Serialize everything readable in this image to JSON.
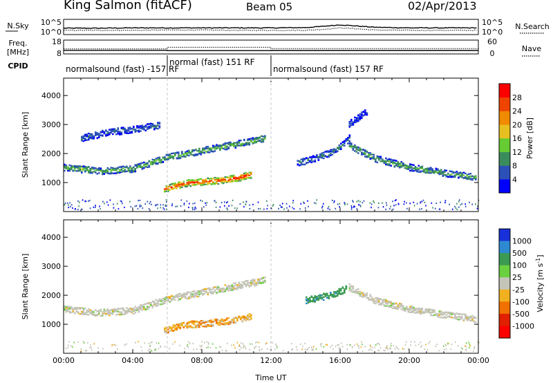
{
  "header": {
    "station": "King Salmon (fitACF)",
    "beam": "Beam 05",
    "date": "02/Apr/2013"
  },
  "chart_data": [
    {
      "type": "line",
      "panel": "noise",
      "left_label": "N.Sky",
      "right_label": "N.Search",
      "left_ticks": [
        "10^5",
        "10^0"
      ],
      "right_ticks": [
        "10^5",
        "10^0"
      ],
      "x_hours": [
        0,
        2,
        4,
        6,
        8,
        10,
        12,
        14,
        15,
        16,
        17,
        18,
        20,
        22,
        24
      ],
      "series": [
        {
          "values_log10": [
            2.1,
            2.1,
            2.2,
            2.2,
            2.2,
            2.2,
            2.2,
            2.3,
            2.7,
            3.2,
            2.8,
            2.4,
            2.2,
            2.2,
            2.2
          ]
        },
        {
          "values_log10": [
            1.4,
            1.4,
            1.4,
            1.5,
            1.5,
            1.4,
            1.4,
            1.4,
            1.7,
            2.2,
            1.9,
            1.5,
            1.4,
            1.4,
            1.4
          ]
        }
      ]
    },
    {
      "type": "line",
      "panel": "frequency",
      "left_label": "Freq.",
      "left_unit": "[MHz]",
      "right_label": "Nave",
      "left_ticks": [
        "18",
        "8"
      ],
      "right_ticks": [
        "60",
        "0"
      ],
      "x_hours": [
        0,
        6,
        6.001,
        12,
        12.001,
        24
      ],
      "series": [
        {
          "values": [
            10.6,
            10.6,
            10.4,
            10.4,
            10.5,
            10.5
          ]
        },
        {
          "values": [
            11.6,
            11.6,
            12.8,
            12.8,
            11.9,
            11.9
          ]
        }
      ]
    },
    {
      "type": "table",
      "panel": "cpid",
      "label": "CPID",
      "segments": [
        {
          "start": 0,
          "end": 6,
          "text": "normalsound (fast) -157 RF"
        },
        {
          "start": 6,
          "end": 12,
          "text": "normal (fast) 151 RF"
        },
        {
          "start": 12,
          "end": 24,
          "text": "normalsound (fast) 157 RF"
        }
      ]
    },
    {
      "type": "heatmap",
      "panel": "power",
      "ylabel": "Slant Range [km]",
      "yticks": [
        1000,
        2000,
        3000,
        4000
      ],
      "ylim": [
        0,
        4600
      ],
      "xlim": [
        0,
        24
      ],
      "colorbar": {
        "label": "Power [dB]",
        "ticks": [
          "4",
          "8",
          "12",
          "16",
          "20",
          "24",
          "28"
        ],
        "colors": [
          "#0000ff",
          "#2b50b8",
          "#3b8c5c",
          "#66cc33",
          "#e6c020",
          "#f08a00",
          "#ee4400",
          "#ff0000"
        ]
      },
      "features": [
        {
          "hours": [
            0,
            2,
            4,
            5,
            6,
            8,
            10,
            11.6
          ],
          "range_km": [
            1550,
            1420,
            1500,
            1700,
            1900,
            2120,
            2350,
            2550
          ],
          "power_db": 11
        },
        {
          "hours": [
            5.8,
            7,
            8,
            9,
            10,
            10.8
          ],
          "range_km": [
            800,
            1000,
            1050,
            1100,
            1180,
            1300
          ],
          "power_db": 23
        },
        {
          "hours": [
            13.5,
            14.5,
            15.4,
            16.2,
            16.5
          ],
          "range_km": [
            1700,
            1850,
            2050,
            2350,
            2550
          ],
          "power_db": 7
        },
        {
          "hours": [
            16.5,
            18,
            20,
            22,
            23.9
          ],
          "range_km": [
            2300,
            1850,
            1550,
            1350,
            1200
          ],
          "power_db": 10
        },
        {
          "hours": [
            1,
            2.5,
            4,
            5.5
          ],
          "range_km": [
            2550,
            2750,
            2850,
            3000
          ],
          "power_db": 6
        },
        {
          "hours": [
            16.5,
            17.6
          ],
          "range_km": [
            3050,
            3500
          ],
          "power_db": 5
        }
      ]
    },
    {
      "type": "heatmap",
      "panel": "velocity",
      "ylabel": "Slant Range [km]",
      "yticks": [
        1000,
        2000,
        3000,
        4000
      ],
      "ylim": [
        0,
        4600
      ],
      "xlim": [
        0,
        24
      ],
      "xticks": [
        "00:00",
        "04:00",
        "08:00",
        "12:00",
        "16:00",
        "20:00",
        "00:00"
      ],
      "xlabel": "Time UT",
      "colorbar": {
        "label": "Velocity [m s",
        "label_sup": "-1",
        "label_close": "]",
        "ticks": [
          "1000",
          "500",
          "100",
          "25",
          "-25",
          "-100",
          "-500",
          "-1000"
        ],
        "colors": [
          "#1830d8",
          "#2e8ad0",
          "#3a9a52",
          "#6ad040",
          "#c4c4b8",
          "#f0b020",
          "#f07000",
          "#e02000",
          "#ff0000"
        ]
      },
      "features": [
        {
          "hours": [
            0,
            2,
            4,
            5,
            6,
            8,
            10,
            11.6
          ],
          "range_km": [
            1550,
            1420,
            1500,
            1700,
            1900,
            2120,
            2350,
            2550
          ],
          "velocity": 0
        },
        {
          "hours": [
            5.8,
            7,
            8,
            9,
            10,
            10.8
          ],
          "range_km": [
            800,
            1000,
            1050,
            1100,
            1180,
            1300
          ],
          "velocity": -70
        },
        {
          "hours": [
            14,
            14.8,
            15.6,
            16.3
          ],
          "range_km": [
            1850,
            1950,
            2050,
            2250
          ],
          "velocity": 350
        },
        {
          "hours": [
            16.5,
            18,
            20,
            22,
            23.9
          ],
          "range_km": [
            2300,
            1850,
            1550,
            1350,
            1200
          ],
          "velocity": 0
        }
      ]
    }
  ]
}
